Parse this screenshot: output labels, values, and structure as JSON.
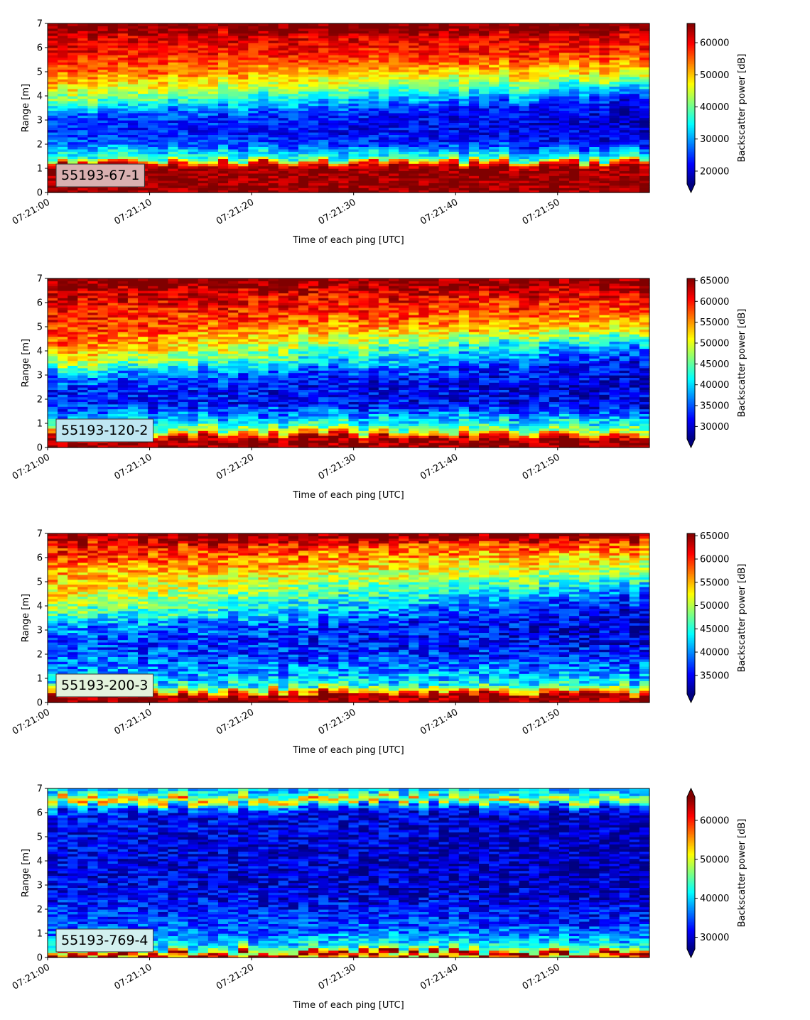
{
  "chart_data": [
    {
      "type": "heatmap",
      "panel_label": "55193-67-1",
      "xlabel": "Time of each ping [UTC]",
      "ylabel": "Range [m]",
      "colorbar_label": "Backscatter power [dB]",
      "colormap": "jet",
      "xlim": [
        "07:21:00",
        "07:21:59"
      ],
      "xticks": [
        "07:21:00",
        "07:21:10",
        "07:21:20",
        "07:21:30",
        "07:21:40",
        "07:21:50"
      ],
      "ylim": [
        0,
        7
      ],
      "yticks": [
        0,
        1,
        2,
        3,
        4,
        5,
        6,
        7
      ],
      "clim": [
        16000,
        66000
      ],
      "colorbar_ticks": [
        20000,
        30000,
        40000,
        50000,
        60000
      ],
      "colorbar_extend": "min",
      "label_box_color": "#d9b0b0",
      "profile": {
        "range_m": [
          0,
          0.15,
          0.3,
          1.0,
          1.2,
          1.4,
          1.7,
          2.0,
          2.6,
          3.2,
          3.7,
          4.3,
          5.0,
          5.8,
          6.5,
          6.75,
          7.0
        ],
        "power_start": [
          65000,
          65000,
          65500,
          65000,
          60000,
          38000,
          34000,
          28000,
          24000,
          27000,
          38000,
          48000,
          55000,
          60000,
          62000,
          66000,
          66000
        ],
        "power_end": [
          65000,
          65000,
          65500,
          65000,
          60000,
          38000,
          30000,
          22000,
          20000,
          20000,
          21000,
          32000,
          48000,
          58000,
          61000,
          66000,
          66000
        ]
      }
    },
    {
      "type": "heatmap",
      "panel_label": "55193-120-2",
      "xlabel": "Time of each ping [UTC]",
      "ylabel": "Range [m]",
      "colorbar_label": "Backscatter power [dB]",
      "colormap": "jet",
      "xlim": [
        "07:21:00",
        "07:21:59"
      ],
      "xticks": [
        "07:21:00",
        "07:21:10",
        "07:21:20",
        "07:21:30",
        "07:21:40",
        "07:21:50"
      ],
      "ylim": [
        0,
        7
      ],
      "yticks": [
        0,
        1,
        2,
        3,
        4,
        5,
        6,
        7
      ],
      "clim": [
        27000,
        65500
      ],
      "colorbar_ticks": [
        30000,
        35000,
        40000,
        45000,
        50000,
        55000,
        60000,
        65000
      ],
      "colorbar_extend": "min",
      "label_box_color": "#bfe6f2",
      "profile": {
        "range_m": [
          0,
          0.15,
          0.3,
          0.5,
          0.7,
          1.0,
          1.3,
          1.8,
          2.5,
          3.0,
          3.5,
          4.2,
          5.0,
          5.8,
          6.5,
          6.75,
          7.0
        ],
        "power_start": [
          65000,
          65000,
          65000,
          60000,
          48000,
          42000,
          38000,
          33000,
          33000,
          37000,
          48000,
          56000,
          59000,
          61000,
          63000,
          65500,
          65500
        ],
        "power_end": [
          65000,
          65000,
          65000,
          60000,
          48000,
          42000,
          38000,
          31000,
          30000,
          30000,
          31000,
          36000,
          52000,
          58000,
          62000,
          65500,
          65500
        ]
      }
    },
    {
      "type": "heatmap",
      "panel_label": "55193-200-3",
      "xlabel": "Time of each ping [UTC]",
      "ylabel": "Range [m]",
      "colorbar_label": "Backscatter power [dB]",
      "colormap": "jet",
      "xlim": [
        "07:21:00",
        "07:21:59"
      ],
      "xticks": [
        "07:21:00",
        "07:21:10",
        "07:21:20",
        "07:21:30",
        "07:21:40",
        "07:21:50"
      ],
      "ylim": [
        0,
        7
      ],
      "yticks": [
        0,
        1,
        2,
        3,
        4,
        5,
        6,
        7
      ],
      "clim": [
        31000,
        65500
      ],
      "colorbar_ticks": [
        35000,
        40000,
        45000,
        50000,
        55000,
        60000,
        65000
      ],
      "colorbar_extend": "min",
      "label_box_color": "#e3f2dc",
      "profile": {
        "range_m": [
          0,
          0.15,
          0.3,
          0.45,
          0.7,
          1.0,
          1.5,
          2.0,
          2.6,
          3.2,
          3.8,
          4.4,
          5.2,
          6.0,
          6.6,
          6.8,
          7.0
        ],
        "power_start": [
          65000,
          65000,
          65000,
          56000,
          45000,
          42000,
          40000,
          38000,
          38000,
          41000,
          48000,
          52000,
          55000,
          59000,
          62000,
          65500,
          65500
        ],
        "power_end": [
          65000,
          65000,
          65000,
          56000,
          45000,
          42000,
          39000,
          36000,
          34000,
          33000,
          34000,
          38000,
          47000,
          54000,
          58000,
          65500,
          65500
        ]
      }
    },
    {
      "type": "heatmap",
      "panel_label": "55193-769-4",
      "xlabel": "Time of each ping [UTC]",
      "ylabel": "Range [m]",
      "colorbar_label": "Backscatter power [dB]",
      "colormap": "jet",
      "xlim": [
        "07:21:00",
        "07:21:59"
      ],
      "xticks": [
        "07:21:00",
        "07:21:10",
        "07:21:20",
        "07:21:30",
        "07:21:40",
        "07:21:50"
      ],
      "ylim": [
        0,
        7
      ],
      "yticks": [
        0,
        1,
        2,
        3,
        4,
        5,
        6,
        7
      ],
      "clim": [
        27000,
        66000
      ],
      "colorbar_ticks": [
        30000,
        40000,
        50000,
        60000
      ],
      "colorbar_extend": "both",
      "label_box_color": "#d2f0ef",
      "profile": {
        "range_m": [
          0,
          0.1,
          0.2,
          0.3,
          0.5,
          0.8,
          1.2,
          1.8,
          2.5,
          3.5,
          4.5,
          5.5,
          6.0,
          6.3,
          6.55,
          6.75,
          7.0
        ],
        "power_start": [
          50000,
          65000,
          65000,
          48000,
          42000,
          38000,
          36000,
          34000,
          32000,
          31000,
          31000,
          32000,
          33000,
          40000,
          58000,
          45000,
          40000
        ],
        "power_end": [
          50000,
          65000,
          65000,
          48000,
          42000,
          38000,
          35000,
          32000,
          30000,
          29000,
          29000,
          29000,
          30000,
          34000,
          52000,
          40000,
          38000
        ]
      }
    }
  ]
}
